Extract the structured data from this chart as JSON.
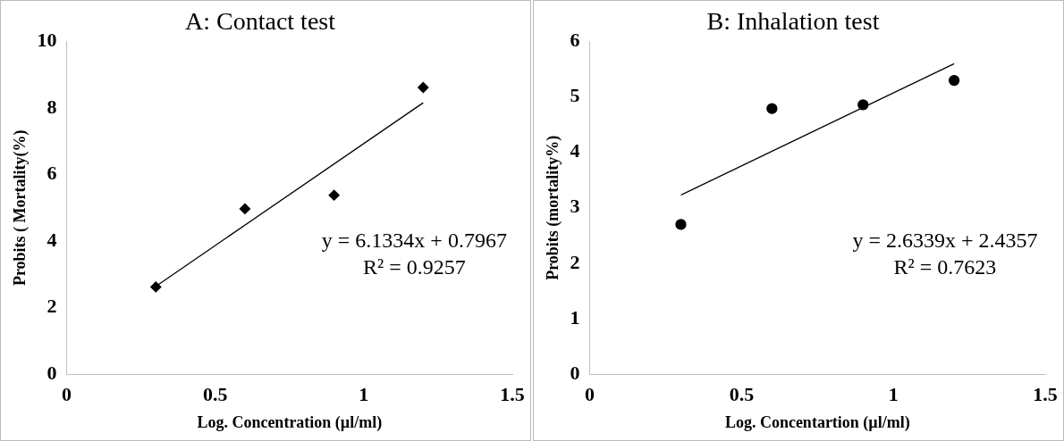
{
  "chart_data": [
    {
      "type": "scatter",
      "title": "A: Contact test",
      "xlabel": "Log. Concentration (µl/ml)",
      "ylabel": "Probits ( Mortality(%)",
      "xlim": [
        0,
        1.5
      ],
      "xticks": [
        0,
        0.5,
        1,
        1.5
      ],
      "ylim": [
        0,
        10
      ],
      "yticks": [
        0,
        2,
        4,
        6,
        8,
        10
      ],
      "series": [
        {
          "color": "#000000",
          "marker": "diamond",
          "x": [
            0.3,
            0.6,
            0.9,
            1.2
          ],
          "values": [
            2.62,
            4.97,
            5.38,
            8.62
          ]
        },
        {
          "type": "line",
          "color": "#000000",
          "marker": "none",
          "x": [
            0.3,
            1.2
          ],
          "values": [
            2.64,
            8.16
          ]
        }
      ],
      "annotations": [
        "y = 6.1334x + 0.7967",
        "R² = 0.9257"
      ]
    },
    {
      "type": "scatter",
      "title": "B: Inhalation test",
      "xlabel": "Log. Concentartion (µl/ml)",
      "ylabel": "Probits (mortality%)",
      "xlim": [
        0,
        1.5
      ],
      "xticks": [
        0,
        0.5,
        1,
        1.5
      ],
      "ylim": [
        0,
        6
      ],
      "yticks": [
        0,
        1,
        2,
        3,
        4,
        5,
        6
      ],
      "series": [
        {
          "color": "#000000",
          "marker": "circle",
          "x": [
            0.3,
            0.6,
            0.9,
            1.2
          ],
          "values": [
            2.7,
            4.79,
            4.86,
            5.3
          ]
        },
        {
          "type": "line",
          "color": "#000000",
          "marker": "none",
          "x": [
            0.3,
            1.2
          ],
          "values": [
            3.23,
            5.6
          ]
        }
      ],
      "annotations": [
        "y = 2.6339x + 2.4357",
        "R² = 0.7623"
      ]
    }
  ]
}
